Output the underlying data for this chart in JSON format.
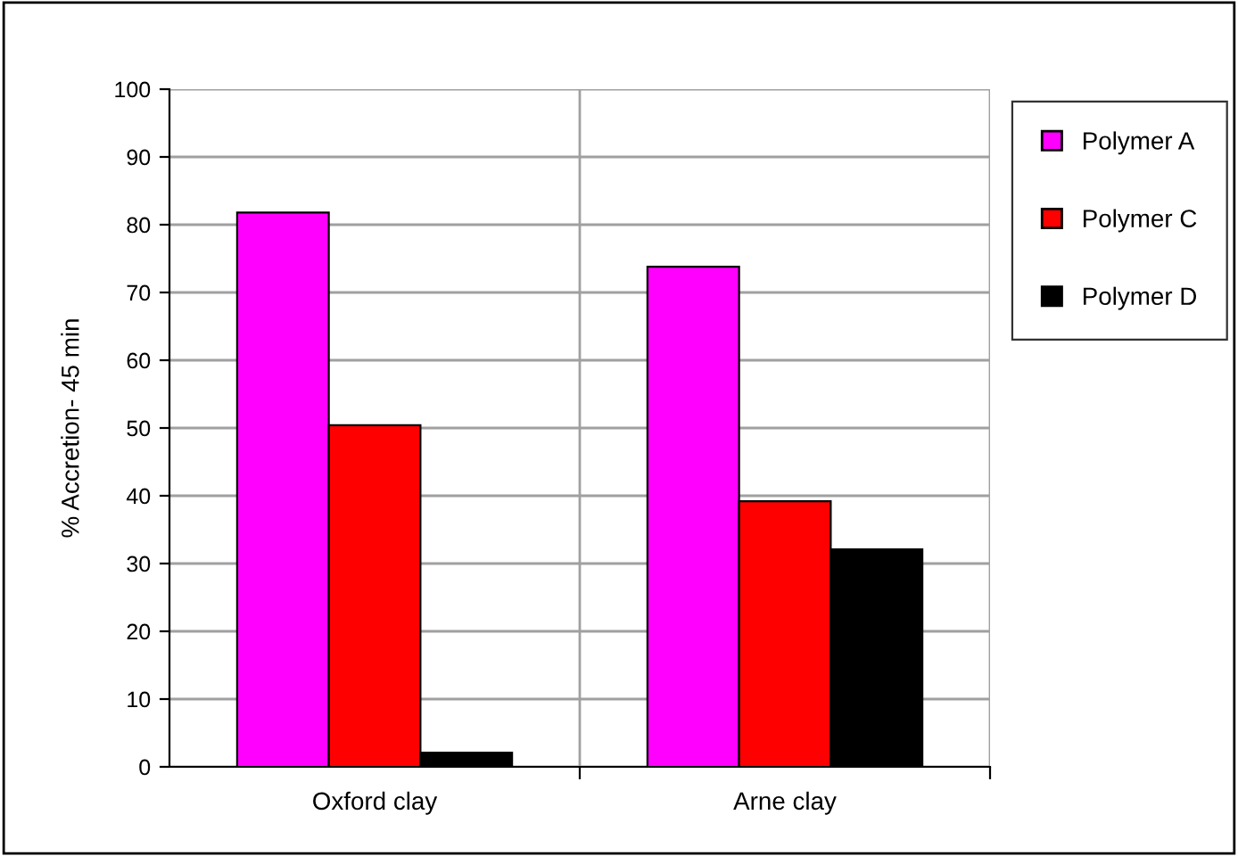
{
  "chart_data": {
    "type": "bar",
    "ylabel": "% Accretion- 45 min",
    "categories": [
      "Oxford clay",
      "Arne clay"
    ],
    "series": [
      {
        "name": "Polymer A",
        "color": "#ff00ff",
        "values": [
          81.8,
          73.8
        ]
      },
      {
        "name": "Polymer C",
        "color": "#ff0000",
        "values": [
          50.4,
          39.2
        ]
      },
      {
        "name": "Polymer D",
        "color": "#000000",
        "values": [
          2.1,
          32.1
        ]
      }
    ],
    "ylim": [
      0,
      100
    ],
    "yticks": [
      0,
      10,
      20,
      30,
      40,
      50,
      60,
      70,
      80,
      90,
      100
    ],
    "grid": true,
    "legend": "right"
  }
}
